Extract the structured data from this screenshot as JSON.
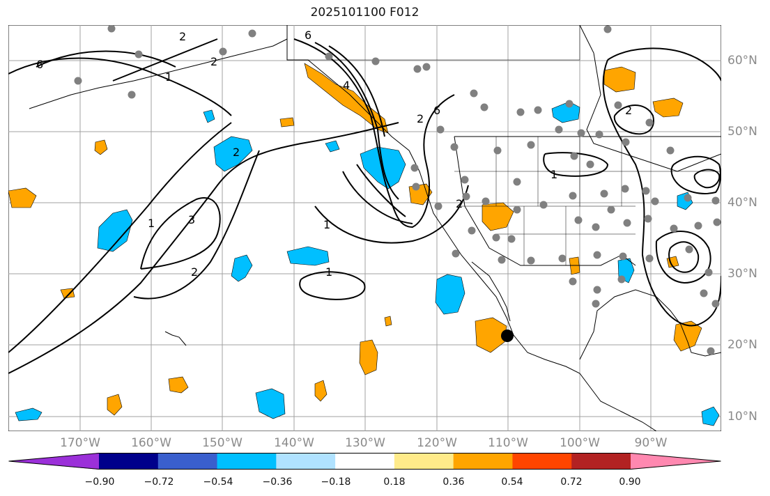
{
  "title": "2025101100 F012",
  "lon_labels": [
    "170°W",
    "160°W",
    "150°W",
    "140°W",
    "130°W",
    "120°W",
    "110°W",
    "100°W",
    "90°W"
  ],
  "lat_labels": [
    "60°N",
    "50°N",
    "40°N",
    "30°N",
    "20°N",
    "10°N"
  ],
  "colorbar": {
    "colors": [
      "#9b30d9",
      "#00008b",
      "#3a5fcd",
      "#00bfff",
      "#b0e2ff",
      "#ffffff",
      "#ffeb8a",
      "#ffa500",
      "#ff4500",
      "#b22222",
      "#ff88b0"
    ],
    "tick_labels": [
      "−0.90",
      "−0.72",
      "−0.54",
      "−0.36",
      "−0.18",
      "0.18",
      "0.36",
      "0.54",
      "0.72",
      "0.90"
    ]
  },
  "contour_labels": [
    "6",
    "2",
    "6",
    "1",
    "2",
    "2",
    "6",
    "4",
    "3",
    "1",
    "2",
    "2",
    "1",
    "2",
    "1",
    "2",
    "1"
  ],
  "colors": {
    "grid": "#a0a0a0",
    "coast": "#000000",
    "station": "#808080",
    "marker": "#000000"
  }
}
